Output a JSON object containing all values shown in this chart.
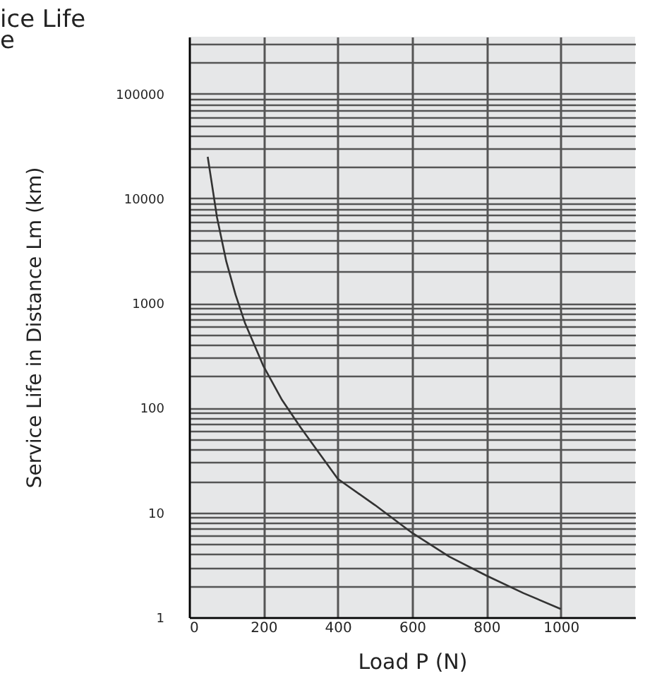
{
  "chart_data": {
    "type": "line",
    "title": "ice Life\ne",
    "xlabel": "Load  P  (N)",
    "ylabel": "Service Life in Distance  Lm  (km)",
    "x": [
      50,
      75,
      100,
      125,
      150,
      200,
      250,
      300,
      400,
      500,
      600,
      700,
      800,
      900,
      1000
    ],
    "series": [
      {
        "color": "#333333",
        "values": [
          25000,
          6600,
          2500,
          1200,
          650,
          250,
          119,
          65,
          21,
          11.8,
          6.4,
          3.8,
          2.5,
          1.7,
          1.2
        ]
      }
    ],
    "log": "y",
    "xlim": [
      0,
      1200
    ],
    "ylim": [
      1,
      350000
    ],
    "xticks": [
      0,
      200,
      400,
      600,
      800,
      1000
    ],
    "yticks": [
      1,
      {
        "value": 2,
        "label": null
      },
      {
        "value": 3,
        "label": null
      },
      {
        "value": 4,
        "label": null
      },
      {
        "value": 5,
        "label": null
      },
      {
        "value": 6,
        "label": null
      },
      {
        "value": 7,
        "label": null
      },
      {
        "value": 8,
        "label": null
      },
      {
        "value": 9,
        "label": null
      },
      10,
      {
        "value": 20,
        "label": null
      },
      {
        "value": 30,
        "label": null
      },
      {
        "value": 40,
        "label": null
      },
      {
        "value": 50,
        "label": null
      },
      {
        "value": 60,
        "label": null
      },
      {
        "value": 70,
        "label": null
      },
      {
        "value": 80,
        "label": null
      },
      {
        "value": 90,
        "label": null
      },
      100,
      {
        "value": 200,
        "label": null
      },
      {
        "value": 300,
        "label": null
      },
      {
        "value": 400,
        "label": null
      },
      {
        "value": 500,
        "label": null
      },
      {
        "value": 600,
        "label": null
      },
      {
        "value": 700,
        "label": null
      },
      {
        "value": 800,
        "label": null
      },
      {
        "value": 900,
        "label": null
      },
      1000,
      {
        "value": 2000,
        "label": null
      },
      {
        "value": 3000,
        "label": null
      },
      {
        "value": 4000,
        "label": null
      },
      {
        "value": 5000,
        "label": null
      },
      {
        "value": 6000,
        "label": null
      },
      {
        "value": 7000,
        "label": null
      },
      {
        "value": 8000,
        "label": null
      },
      {
        "value": 9000,
        "label": null
      },
      10000,
      {
        "value": 20000,
        "label": null
      },
      {
        "value": 30000,
        "label": null
      },
      {
        "value": 40000,
        "label": null
      },
      {
        "value": 50000,
        "label": null
      },
      {
        "value": 60000,
        "label": null
      },
      {
        "value": 70000,
        "label": null
      },
      {
        "value": 80000,
        "label": null
      },
      {
        "value": 90000,
        "label": null
      },
      100000,
      {
        "value": 200000,
        "label": null
      },
      {
        "value": 300000,
        "label": null
      }
    ],
    "grid": true,
    "marker": "none",
    "line_style": "solid"
  }
}
